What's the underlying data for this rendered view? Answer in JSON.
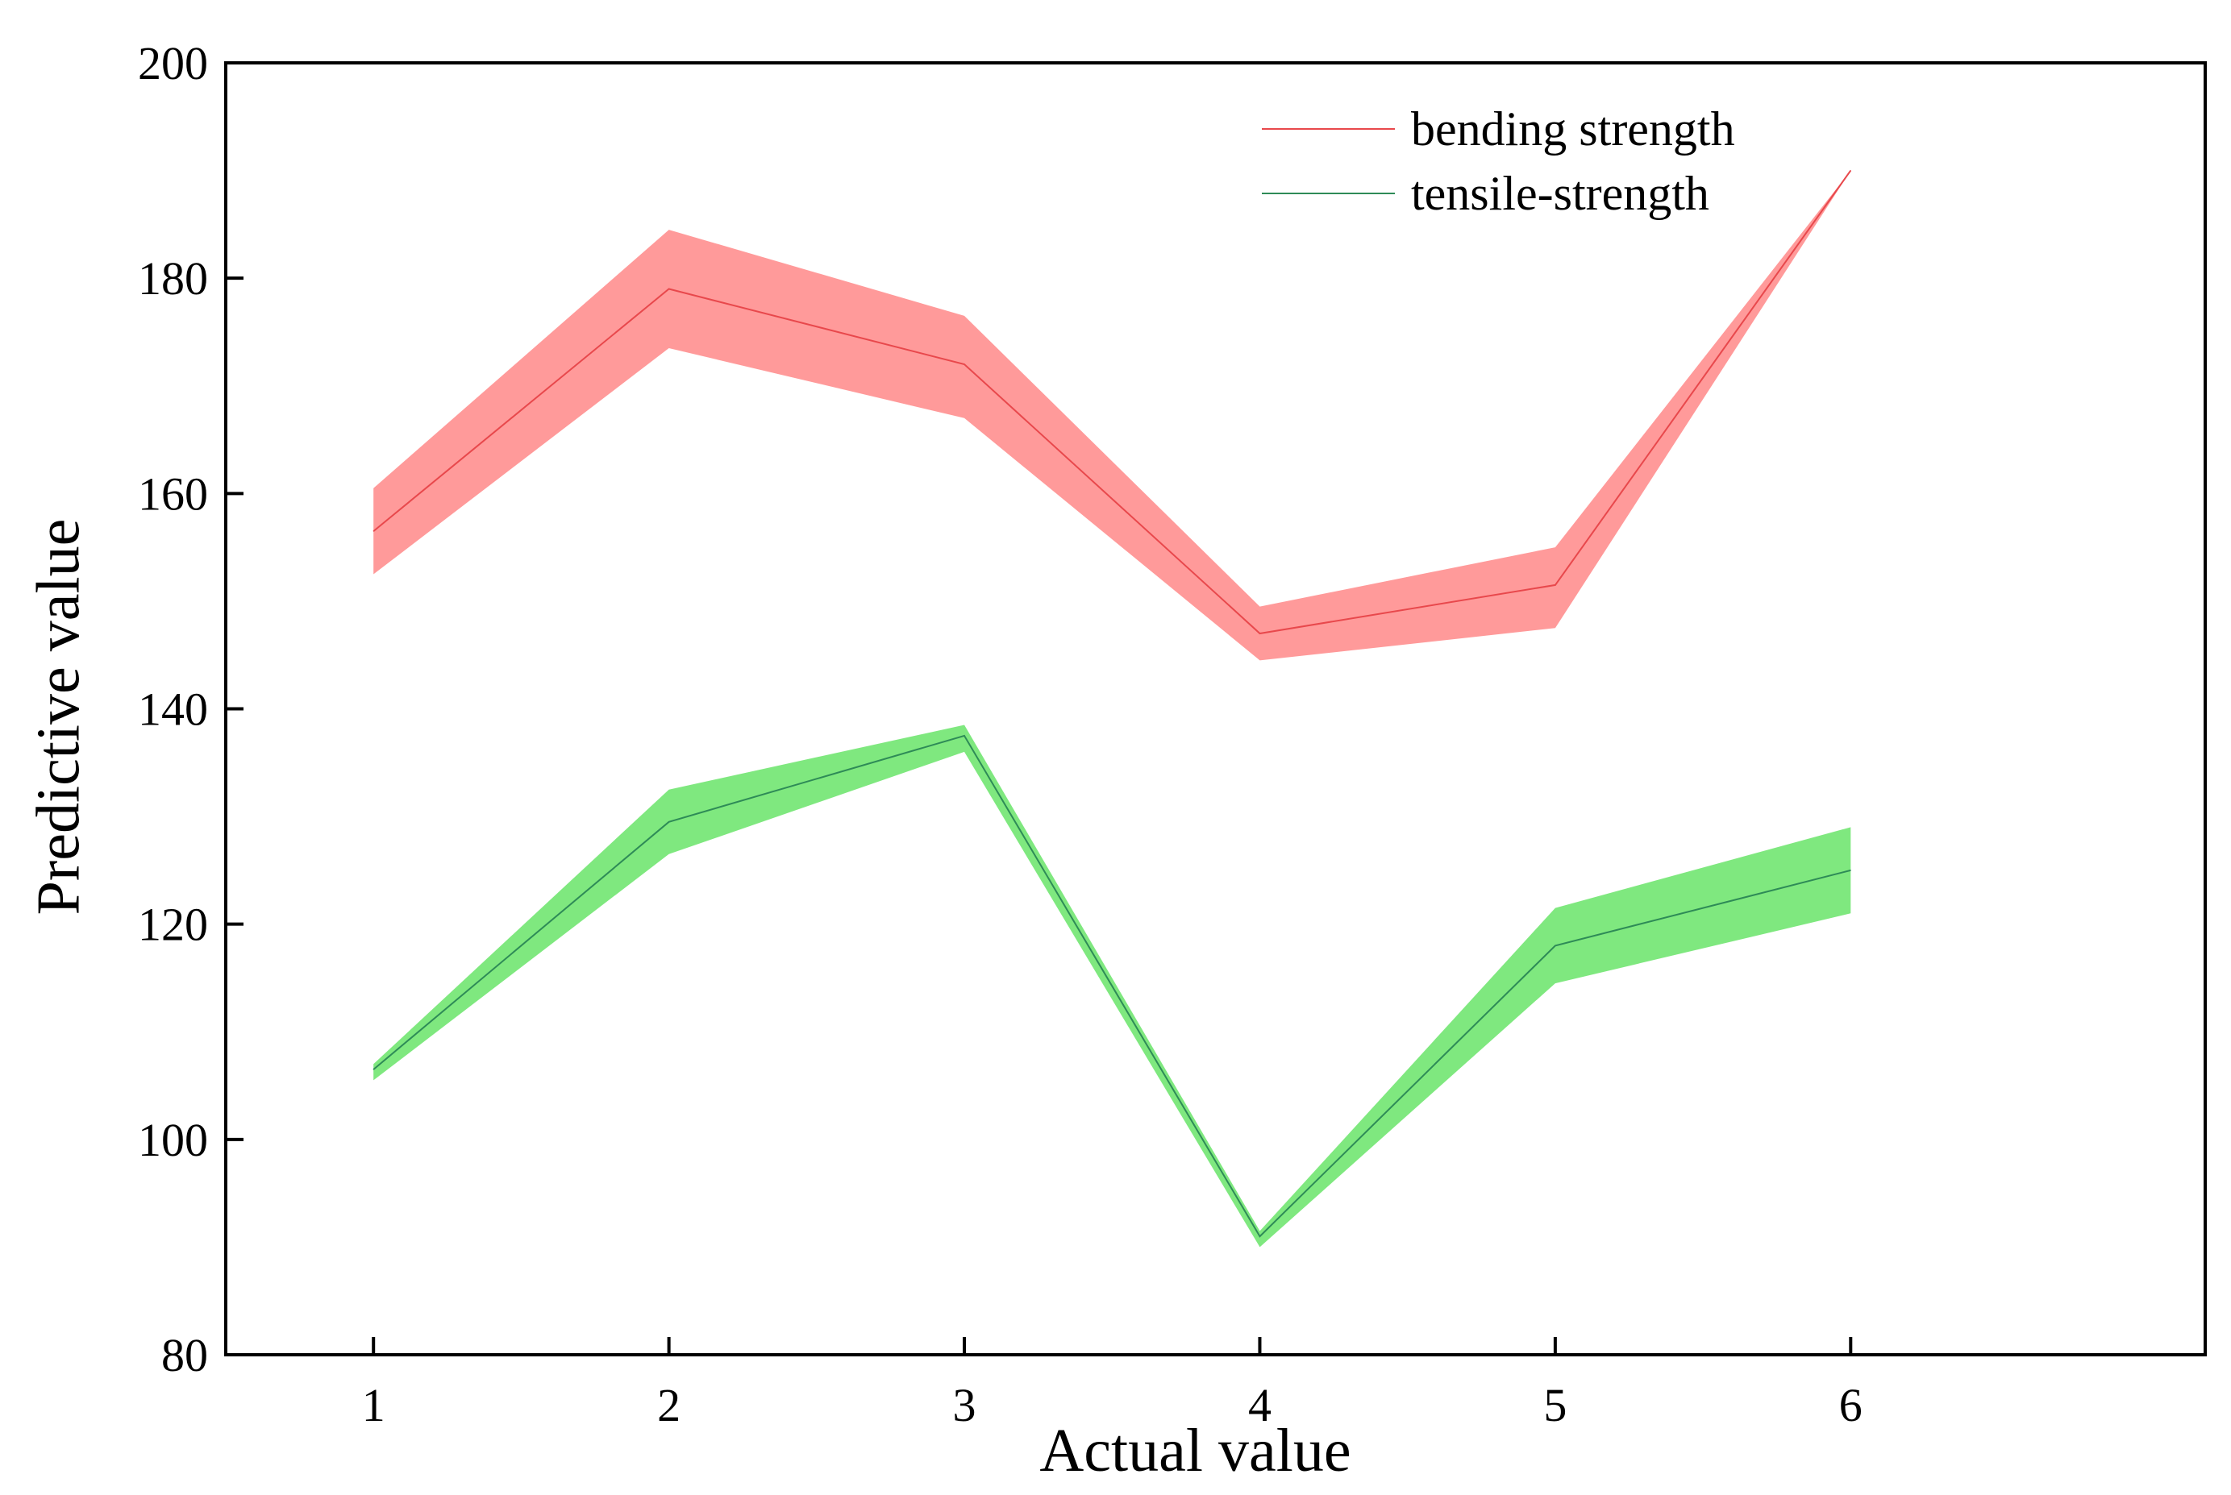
{
  "chart_data": {
    "type": "line",
    "title": "",
    "xlabel": "Actual value",
    "ylabel": "Predictive value",
    "x": [
      1,
      2,
      3,
      4,
      5,
      6
    ],
    "x_ticks": [
      "1",
      "2",
      "3",
      "4",
      "5",
      "6"
    ],
    "y_ticks": [
      "80",
      "100",
      "120",
      "140",
      "160",
      "180",
      "200"
    ],
    "xlim": [
      0.5,
      7.2
    ],
    "ylim": [
      80,
      200
    ],
    "grid": false,
    "legend_position": "top-right",
    "series": [
      {
        "name": "bending strength",
        "color": "#e8484c",
        "band_color": "#ff9a9a",
        "values": [
          156.5,
          179.0,
          172.0,
          147.0,
          151.5,
          190.0
        ],
        "upper": [
          160.5,
          184.5,
          176.5,
          149.5,
          155.0,
          190.0
        ],
        "lower": [
          152.5,
          173.5,
          167.0,
          144.5,
          147.5,
          190.0
        ]
      },
      {
        "name": "tensile-strength",
        "color": "#2e8b57",
        "band_color": "#7fe87f",
        "values": [
          106.5,
          129.5,
          137.5,
          91.0,
          118.0,
          125.0
        ],
        "upper": [
          107.0,
          132.5,
          138.5,
          91.5,
          121.5,
          129.0
        ],
        "lower": [
          105.5,
          126.5,
          136.0,
          90.0,
          114.5,
          121.0
        ]
      }
    ]
  }
}
